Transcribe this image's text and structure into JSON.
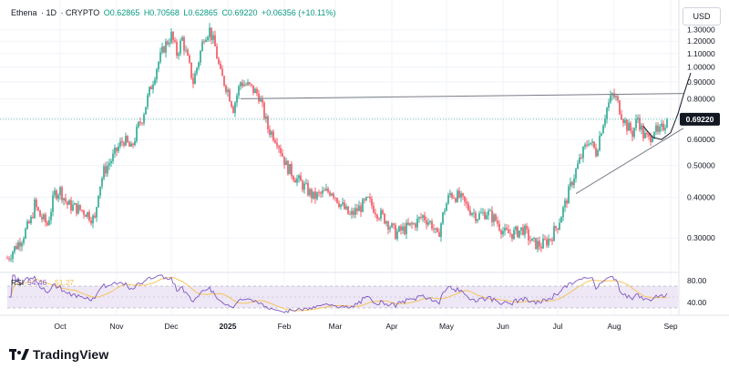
{
  "header": {
    "symbol": "Ethena",
    "interval": "1D",
    "source": "CRYPTO",
    "open": "O0.62865",
    "high": "H0.70568",
    "low": "L0.62865",
    "close": "C0.69220",
    "change": "+0.06356 (+10.11%)"
  },
  "unit_label": "USD",
  "brand": {
    "name": "TradingView",
    "logo": "tradingview-logo"
  },
  "colors": {
    "up": "#089981",
    "down": "#f23645",
    "rsi_line": "#7e57c2",
    "rsi_ma": "#f7c04b",
    "rsi_band": "#ede7f6",
    "trendline": "#787b86",
    "price_badge": "#131722"
  },
  "chart_data": [
    {
      "type": "candlestick",
      "title": "",
      "y_scale": "log",
      "ylim": [
        0.24,
        1.34
      ],
      "y_ticks": [
        "1.30000",
        "1.20000",
        "1.10000",
        "1.00000",
        "0.90000",
        "0.80000",
        "0.70000",
        "0.60000",
        "0.50000",
        "0.40000",
        "0.30000"
      ],
      "y_tick_values": [
        1.3,
        1.2,
        1.1,
        1.0,
        0.9,
        0.8,
        0.7,
        0.6,
        0.5,
        0.4,
        0.3
      ],
      "x_ticks": [
        "Oct",
        "Nov",
        "Dec",
        "2025",
        "Feb",
        "Mar",
        "Apr",
        "May",
        "Jun",
        "Jul",
        "Aug",
        "Sep"
      ],
      "x_tick_days": [
        31,
        62,
        92,
        123,
        154,
        182,
        213,
        243,
        274,
        304,
        335,
        366
      ],
      "x_range_days": [
        2,
        370
      ],
      "current_price": "0.69220",
      "current_price_value": 0.6922,
      "price_anchors": [
        [
          2,
          0.26
        ],
        [
          10,
          0.3
        ],
        [
          15,
          0.34
        ],
        [
          17,
          0.38
        ],
        [
          20,
          0.35
        ],
        [
          24,
          0.33
        ],
        [
          28,
          0.41
        ],
        [
          31,
          0.42
        ],
        [
          35,
          0.38
        ],
        [
          40,
          0.37
        ],
        [
          45,
          0.36
        ],
        [
          50,
          0.34
        ],
        [
          52,
          0.42
        ],
        [
          55,
          0.48
        ],
        [
          60,
          0.53
        ],
        [
          63,
          0.57
        ],
        [
          66,
          0.6
        ],
        [
          70,
          0.56
        ],
        [
          74,
          0.66
        ],
        [
          76,
          0.7
        ],
        [
          80,
          0.84
        ],
        [
          84,
          1.0
        ],
        [
          88,
          1.15
        ],
        [
          92,
          1.25
        ],
        [
          95,
          1.1
        ],
        [
          98,
          1.22
        ],
        [
          101,
          1.05
        ],
        [
          104,
          0.9
        ],
        [
          107,
          1.05
        ],
        [
          110,
          1.25
        ],
        [
          113,
          1.3
        ],
        [
          116,
          1.15
        ],
        [
          119,
          0.95
        ],
        [
          123,
          0.85
        ],
        [
          126,
          0.75
        ],
        [
          130,
          0.9
        ],
        [
          135,
          0.87
        ],
        [
          140,
          0.82
        ],
        [
          145,
          0.65
        ],
        [
          150,
          0.6
        ],
        [
          155,
          0.5
        ],
        [
          160,
          0.46
        ],
        [
          165,
          0.43
        ],
        [
          170,
          0.4
        ],
        [
          175,
          0.41
        ],
        [
          180,
          0.42
        ],
        [
          185,
          0.38
        ],
        [
          190,
          0.35
        ],
        [
          195,
          0.37
        ],
        [
          200,
          0.39
        ],
        [
          205,
          0.36
        ],
        [
          210,
          0.34
        ],
        [
          215,
          0.31
        ],
        [
          220,
          0.32
        ],
        [
          225,
          0.33
        ],
        [
          230,
          0.35
        ],
        [
          235,
          0.33
        ],
        [
          238,
          0.3
        ],
        [
          242,
          0.37
        ],
        [
          245,
          0.41
        ],
        [
          250,
          0.4
        ],
        [
          255,
          0.37
        ],
        [
          260,
          0.35
        ],
        [
          265,
          0.36
        ],
        [
          270,
          0.34
        ],
        [
          275,
          0.31
        ],
        [
          280,
          0.31
        ],
        [
          285,
          0.32
        ],
        [
          290,
          0.29
        ],
        [
          295,
          0.285
        ],
        [
          300,
          0.3
        ],
        [
          304,
          0.33
        ],
        [
          308,
          0.38
        ],
        [
          312,
          0.45
        ],
        [
          315,
          0.5
        ],
        [
          318,
          0.55
        ],
        [
          321,
          0.6
        ],
        [
          325,
          0.55
        ],
        [
          328,
          0.65
        ],
        [
          331,
          0.75
        ],
        [
          334,
          0.82
        ],
        [
          336,
          0.8
        ],
        [
          339,
          0.72
        ],
        [
          342,
          0.66
        ],
        [
          345,
          0.63
        ],
        [
          348,
          0.7
        ],
        [
          351,
          0.62
        ],
        [
          354,
          0.6
        ],
        [
          357,
          0.65
        ],
        [
          359,
          0.62
        ],
        [
          362,
          0.66
        ],
        [
          364,
          0.692
        ]
      ],
      "trendlines": [
        {
          "name": "",
          "from": [
            130,
            0.8
          ],
          "to": [
            373,
            0.83
          ]
        },
        {
          "name": "",
          "from": [
            314,
            0.41
          ],
          "to": [
            373,
            0.65
          ]
        }
      ],
      "curve": {
        "name": "",
        "points": [
          [
            351,
            0.66
          ],
          [
            356,
            0.61
          ],
          [
            361,
            0.6
          ],
          [
            366,
            0.63
          ],
          [
            370,
            0.72
          ],
          [
            373,
            0.82
          ],
          [
            377,
            0.96
          ]
        ]
      }
    },
    {
      "type": "line",
      "title": "",
      "indicator_label": "RSI",
      "series": [
        {
          "name": "",
          "value_label": "54.46"
        },
        {
          "name": "",
          "value_label": "51.27"
        }
      ],
      "ylim": [
        20,
        90
      ],
      "band": [
        30,
        70
      ],
      "y_ticks": [
        "80.00",
        "40.00"
      ],
      "y_tick_values": [
        80,
        40
      ]
    }
  ]
}
